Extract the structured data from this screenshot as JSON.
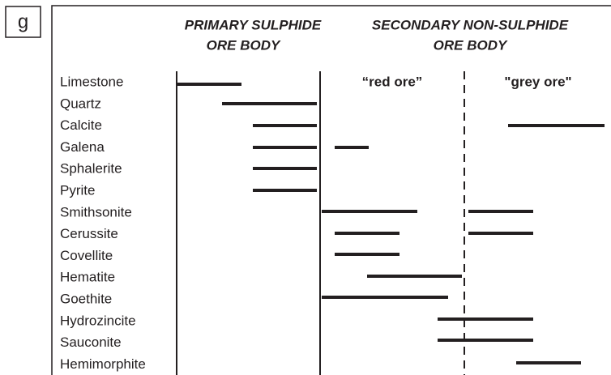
{
  "panel_label": "g",
  "headers": {
    "primary": [
      "PRIMARY SULPHIDE",
      "ORE BODY"
    ],
    "secondary": [
      "SECONDARY NON-SULPHIDE",
      "ORE BODY"
    ]
  },
  "subheaders": {
    "red": "“red ore”",
    "grey": "\"grey ore\""
  },
  "minerals": [
    "Limestone",
    "Quartz",
    "Calcite",
    "Galena",
    "Sphalerite",
    "Pyrite",
    "Smithsonite",
    "Cerussite",
    "Covellite",
    "Hematite",
    "Goethite",
    "Hydrozincite",
    "Sauconite",
    "Hemimorphite"
  ]
}
